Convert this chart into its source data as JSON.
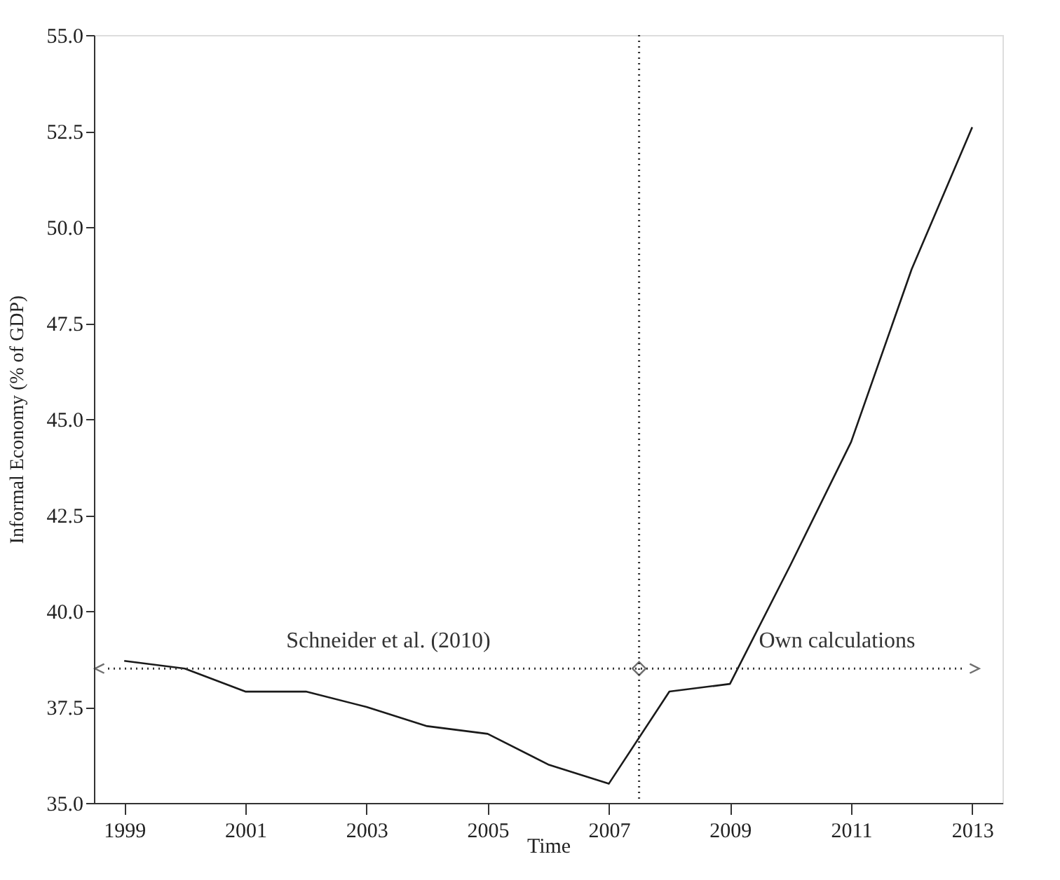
{
  "chart_data": {
    "type": "line",
    "xlabel": "Time",
    "ylabel": "Informal Economy (% of GDP)",
    "x": [
      1999,
      2000,
      2001,
      2002,
      2003,
      2004,
      2005,
      2006,
      2007,
      2008,
      2009,
      2010,
      2011,
      2012,
      2013
    ],
    "series": [
      {
        "color": "#1a1a1a",
        "values": [
          38.7,
          38.5,
          37.9,
          37.9,
          37.5,
          37.0,
          36.8,
          36.0,
          35.5,
          37.9,
          38.1,
          41.2,
          44.4,
          48.9,
          52.6
        ]
      }
    ],
    "xlim": [
      1998.5,
      2013.5
    ],
    "xticks": [
      1999,
      2001,
      2003,
      2005,
      2007,
      2009,
      2011,
      2013
    ],
    "ylim": [
      35.0,
      55.0
    ],
    "yticks": [
      {
        "value": 35,
        "label": "35.0"
      },
      37.5,
      {
        "value": 40,
        "label": "40.0"
      },
      42.5,
      {
        "value": 45,
        "label": "45.0"
      },
      47.5,
      {
        "value": 50,
        "label": "50.0"
      },
      52.5,
      {
        "value": 55,
        "label": "55.0"
      }
    ],
    "ref_lines": [
      {
        "axis": "y",
        "value": 38.5,
        "line_style": "dotted",
        "color": "#333333"
      },
      {
        "axis": "x",
        "value": 2007.5,
        "line_style": "dotted",
        "color": "#333333"
      }
    ],
    "annotations": [
      "Schneider et al. (2010)",
      "Own calculations"
    ],
    "grid": false,
    "marker": "none",
    "line_style": "solid"
  }
}
